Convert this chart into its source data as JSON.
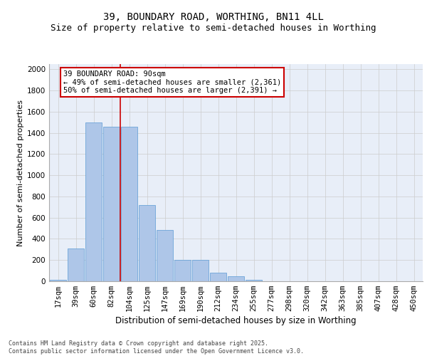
{
  "title1": "39, BOUNDARY ROAD, WORTHING, BN11 4LL",
  "title2": "Size of property relative to semi-detached houses in Worthing",
  "xlabel": "Distribution of semi-detached houses by size in Worthing",
  "ylabel": "Number of semi-detached properties",
  "categories": [
    "17sqm",
    "39sqm",
    "60sqm",
    "82sqm",
    "104sqm",
    "125sqm",
    "147sqm",
    "169sqm",
    "190sqm",
    "212sqm",
    "234sqm",
    "255sqm",
    "277sqm",
    "298sqm",
    "320sqm",
    "342sqm",
    "363sqm",
    "385sqm",
    "407sqm",
    "428sqm",
    "450sqm"
  ],
  "values": [
    15,
    310,
    1500,
    1460,
    1460,
    720,
    485,
    200,
    200,
    80,
    50,
    15,
    0,
    0,
    0,
    0,
    0,
    0,
    0,
    0,
    0
  ],
  "bar_color": "#aec6e8",
  "bar_edgecolor": "#5a9ad5",
  "vline_color": "#cc0000",
  "vline_x": 3.5,
  "annotation_title": "39 BOUNDARY ROAD: 90sqm",
  "annotation_line1": "← 49% of semi-detached houses are smaller (2,361)",
  "annotation_line2": "50% of semi-detached houses are larger (2,391) →",
  "annotation_box_color": "#cc0000",
  "ylim": [
    0,
    2050
  ],
  "yticks": [
    0,
    200,
    400,
    600,
    800,
    1000,
    1200,
    1400,
    1600,
    1800,
    2000
  ],
  "grid_color": "#cccccc",
  "background_color": "#e8eef8",
  "footer": "Contains HM Land Registry data © Crown copyright and database right 2025.\nContains public sector information licensed under the Open Government Licence v3.0.",
  "title1_fontsize": 10,
  "title2_fontsize": 9,
  "xlabel_fontsize": 8.5,
  "ylabel_fontsize": 8,
  "tick_fontsize": 7.5,
  "annotation_fontsize": 7.5,
  "footer_fontsize": 6
}
